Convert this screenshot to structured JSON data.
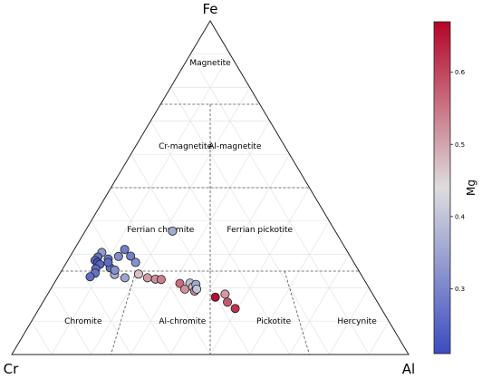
{
  "chart_data": {
    "type": "scatter",
    "subtype": "ternary",
    "vertices": {
      "top": "Fe",
      "left": "Cr",
      "right": "Al"
    },
    "grid": true,
    "fields": [
      {
        "label": "Magnetite"
      },
      {
        "label": "Cr-magnetite"
      },
      {
        "label": "Al-magnetite"
      },
      {
        "label": "Ferrian chromite"
      },
      {
        "label": "Ferrian pickotite"
      },
      {
        "label": "Chromite"
      },
      {
        "label": "Al-chromite"
      },
      {
        "label": "Pickotite"
      },
      {
        "label": "Hercynite"
      }
    ],
    "colorbar": {
      "label": "Mg",
      "colormap": "coolwarm",
      "min": 0.21,
      "max": 0.67,
      "ticks": [
        0.3,
        0.4,
        0.5,
        0.6
      ],
      "tick_labels": [
        "0.3",
        "0.4",
        "0.5",
        "0.6"
      ],
      "low_color": "#3b4cc0",
      "mid_color": "#dddddd",
      "high_color": "#b40426"
    },
    "points_ternary_order": [
      "Fe",
      "Cr",
      "Al"
    ],
    "points": [
      {
        "Fe": 0.37,
        "Cr": 0.41,
        "Al": 0.22,
        "Mg": 0.36
      },
      {
        "Fe": 0.294,
        "Cr": 0.584,
        "Al": 0.122,
        "Mg": 0.31
      },
      {
        "Fe": 0.315,
        "Cr": 0.558,
        "Al": 0.127,
        "Mg": 0.29
      },
      {
        "Fe": 0.295,
        "Cr": 0.553,
        "Al": 0.152,
        "Mg": 0.29
      },
      {
        "Fe": 0.276,
        "Cr": 0.55,
        "Al": 0.174,
        "Mg": 0.32
      },
      {
        "Fe": 0.26,
        "Cr": 0.622,
        "Al": 0.118,
        "Mg": 0.27
      },
      {
        "Fe": 0.286,
        "Cr": 0.614,
        "Al": 0.1,
        "Mg": 0.28
      },
      {
        "Fe": 0.306,
        "Cr": 0.62,
        "Al": 0.074,
        "Mg": 0.33
      },
      {
        "Fe": 0.292,
        "Cr": 0.637,
        "Al": 0.071,
        "Mg": 0.27
      },
      {
        "Fe": 0.282,
        "Cr": 0.649,
        "Al": 0.069,
        "Mg": 0.25
      },
      {
        "Fe": 0.276,
        "Cr": 0.646,
        "Al": 0.078,
        "Mg": 0.22
      },
      {
        "Fe": 0.27,
        "Cr": 0.643,
        "Al": 0.087,
        "Mg": 0.25
      },
      {
        "Fe": 0.276,
        "Cr": 0.619,
        "Al": 0.105,
        "Mg": 0.26
      },
      {
        "Fe": 0.257,
        "Cr": 0.66,
        "Al": 0.083,
        "Mg": 0.26
      },
      {
        "Fe": 0.244,
        "Cr": 0.668,
        "Al": 0.088,
        "Mg": 0.27
      },
      {
        "Fe": 0.24,
        "Cr": 0.621,
        "Al": 0.139,
        "Mg": 0.36
      },
      {
        "Fe": 0.253,
        "Cr": 0.614,
        "Al": 0.133,
        "Mg": 0.32
      },
      {
        "Fe": 0.233,
        "Cr": 0.686,
        "Al": 0.081,
        "Mg": 0.26
      },
      {
        "Fe": 0.23,
        "Cr": 0.6,
        "Al": 0.17,
        "Mg": 0.35
      },
      {
        "Fe": 0.241,
        "Cr": 0.56,
        "Al": 0.199,
        "Mg": 0.47
      },
      {
        "Fe": 0.23,
        "Cr": 0.543,
        "Al": 0.227,
        "Mg": 0.51
      },
      {
        "Fe": 0.226,
        "Cr": 0.525,
        "Al": 0.249,
        "Mg": 0.52
      },
      {
        "Fe": 0.225,
        "Cr": 0.511,
        "Al": 0.264,
        "Mg": 0.54
      },
      {
        "Fe": 0.213,
        "Cr": 0.47,
        "Al": 0.317,
        "Mg": 0.56
      },
      {
        "Fe": 0.196,
        "Cr": 0.466,
        "Al": 0.338,
        "Mg": 0.52
      },
      {
        "Fe": 0.214,
        "Cr": 0.444,
        "Al": 0.342,
        "Mg": 0.39
      },
      {
        "Fe": 0.202,
        "Cr": 0.443,
        "Al": 0.355,
        "Mg": 0.48
      },
      {
        "Fe": 0.21,
        "Cr": 0.431,
        "Al": 0.359,
        "Mg": 0.36
      },
      {
        "Fe": 0.19,
        "Cr": 0.444,
        "Al": 0.366,
        "Mg": 0.53
      },
      {
        "Fe": 0.196,
        "Cr": 0.436,
        "Al": 0.368,
        "Mg": 0.4
      },
      {
        "Fe": 0.172,
        "Cr": 0.401,
        "Al": 0.427,
        "Mg": 0.66
      },
      {
        "Fe": 0.181,
        "Cr": 0.372,
        "Al": 0.447,
        "Mg": 0.51
      },
      {
        "Fe": 0.157,
        "Cr": 0.378,
        "Al": 0.465,
        "Mg": 0.58
      },
      {
        "Fe": 0.138,
        "Cr": 0.368,
        "Al": 0.494,
        "Mg": 0.62
      }
    ]
  }
}
